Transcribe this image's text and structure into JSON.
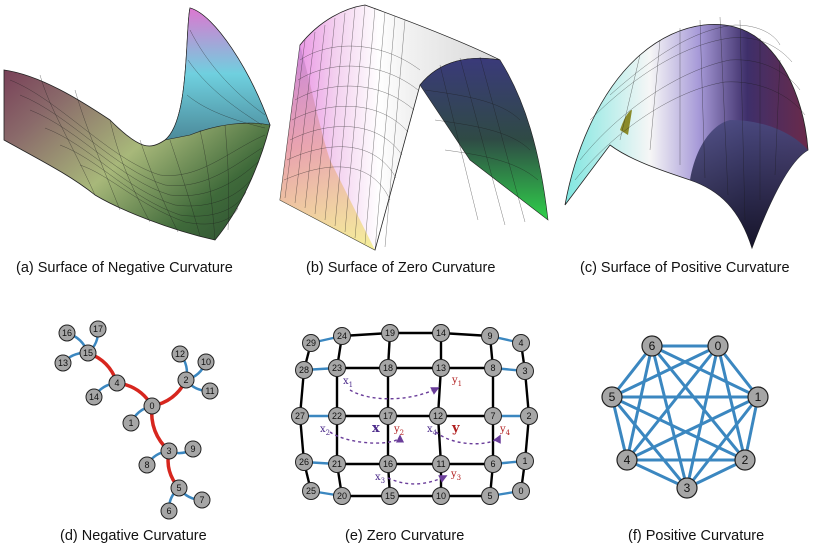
{
  "captions": {
    "a": "(a) Surface of Negative Curvature",
    "b": "(b) Surface of Zero Curvature",
    "c": "(c) Surface of Positive Curvature",
    "d": "(d) Negative Curvature",
    "e": "(e) Zero Curvature",
    "f": "(f) Positive Curvature"
  },
  "colors": {
    "node_fill": "#a6a6a6",
    "tree_red_edge": "#d7261e",
    "blue_edge": "#3b87c0",
    "grid_black_edge": "#000000",
    "arrow_purple": "#6a3d9a"
  },
  "tree_graph": {
    "nodes": [
      "0",
      "1",
      "2",
      "3",
      "4",
      "5",
      "6",
      "7",
      "8",
      "9",
      "10",
      "11",
      "12",
      "13",
      "14",
      "15",
      "16",
      "17"
    ],
    "red_edges": [
      [
        "0",
        "4"
      ],
      [
        "4",
        "15"
      ],
      [
        "0",
        "2"
      ],
      [
        "0",
        "3"
      ],
      [
        "3",
        "5"
      ]
    ],
    "blue_edges": [
      [
        "0",
        "1"
      ],
      [
        "4",
        "14"
      ],
      [
        "15",
        "13"
      ],
      [
        "15",
        "16"
      ],
      [
        "15",
        "17"
      ],
      [
        "2",
        "12"
      ],
      [
        "2",
        "10"
      ],
      [
        "2",
        "11"
      ],
      [
        "3",
        "8"
      ],
      [
        "3",
        "9"
      ],
      [
        "5",
        "6"
      ],
      [
        "5",
        "7"
      ]
    ]
  },
  "grid_graph": {
    "rows": [
      [
        "29",
        "24",
        "19",
        "14",
        "9",
        "4"
      ],
      [
        "28",
        "23",
        "18",
        "13",
        "8",
        "3"
      ],
      [
        "27",
        "22",
        "17",
        "12",
        "7",
        "2"
      ],
      [
        "26",
        "21",
        "16",
        "11",
        "6",
        "1"
      ],
      [
        "25",
        "20",
        "15",
        "10",
        "5",
        "0"
      ]
    ],
    "annotations": {
      "x1": "x",
      "x1_sub": "1",
      "y1": "y",
      "y1_sub": "1",
      "x2": "x",
      "x2_sub": "2",
      "y2": "y",
      "y2_sub": "2",
      "x3": "x",
      "x3_sub": "3",
      "y3": "y",
      "y3_sub": "3",
      "x4": "x",
      "x4_sub": "4",
      "y4": "y",
      "y4_sub": "4",
      "X": "x",
      "Y": "y"
    }
  },
  "complete_graph": {
    "nodes": [
      "0",
      "1",
      "2",
      "3",
      "4",
      "5",
      "6"
    ]
  }
}
